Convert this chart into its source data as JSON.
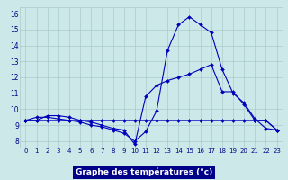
{
  "title": "Graphe des températures (°c)",
  "background_color": "#cce8e8",
  "grid_color": "#aacccc",
  "line_color": "#0000bb",
  "x_ticks": [
    0,
    1,
    2,
    3,
    4,
    5,
    6,
    7,
    8,
    9,
    10,
    11,
    12,
    13,
    14,
    15,
    16,
    17,
    18,
    19,
    20,
    21,
    22,
    23
  ],
  "y_ticks": [
    8,
    9,
    10,
    11,
    12,
    13,
    14,
    15,
    16
  ],
  "ylim": [
    7.6,
    16.4
  ],
  "xlim": [
    -0.5,
    23.5
  ],
  "line1": [
    9.3,
    9.5,
    9.5,
    9.4,
    9.3,
    9.2,
    9.0,
    8.9,
    8.7,
    8.5,
    8.0,
    8.6,
    9.9,
    13.7,
    15.3,
    15.8,
    15.3,
    14.8,
    12.5,
    11.0,
    10.4,
    9.4,
    8.8,
    8.7
  ],
  "line2": [
    9.3,
    9.3,
    9.3,
    9.3,
    9.3,
    9.3,
    9.3,
    9.3,
    9.3,
    9.3,
    9.3,
    9.3,
    9.3,
    9.3,
    9.3,
    9.3,
    9.3,
    9.3,
    9.3,
    9.3,
    9.3,
    9.3,
    9.3,
    8.7
  ],
  "line3": [
    9.3,
    9.3,
    9.6,
    9.6,
    9.5,
    9.3,
    9.2,
    9.0,
    8.8,
    8.7,
    7.8,
    10.8,
    11.5,
    11.8,
    12.0,
    12.2,
    12.5,
    12.8,
    11.1,
    11.1,
    10.3,
    9.3,
    9.3,
    8.7
  ],
  "label_fontsize": 5.0,
  "xlabel_fontsize": 6.5,
  "xlabel_color": "#0000bb"
}
